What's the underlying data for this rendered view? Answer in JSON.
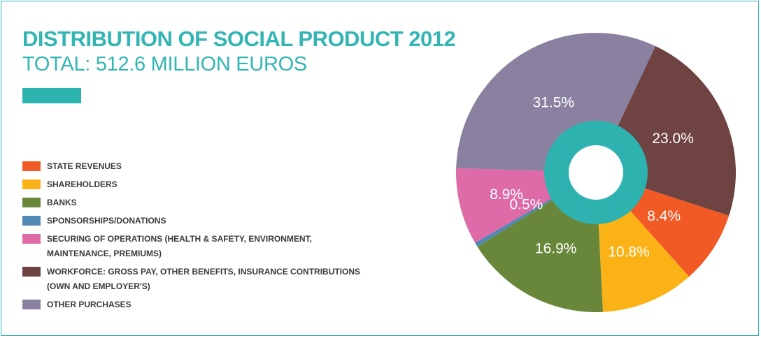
{
  "title": "DISTRIBUTION OF SOCIAL PRODUCT 2012",
  "subtitle": "TOTAL: 512.6 MILLION EUROS",
  "colors": {
    "accent": "#2bb3b0",
    "center_ring": "#2db2b0"
  },
  "legend": [
    {
      "label": "STATE REVENUES",
      "color": "#f15a24"
    },
    {
      "label": "SHAREHOLDERS",
      "color": "#fbb216"
    },
    {
      "label": "BANKS",
      "color": "#69873a"
    },
    {
      "label": "SPONSORSHIPS/DONATIONS",
      "color": "#5188b4"
    },
    {
      "label": "SECURING OF OPERATIONS (HEALTH & SAFETY, ENVIRONMENT, MAINTENANCE, PREMIUMS)",
      "color": "#de6aa8"
    },
    {
      "label": "WORKFORCE: GROSS PAY, OTHER BENEFITS, INSURANCE CONTRIBUTIONS (OWN AND EMPLOYER'S)",
      "color": "#6e4341"
    },
    {
      "label": "OTHER PURCHASES",
      "color": "#8a81a1"
    }
  ],
  "chart_data": {
    "type": "pie",
    "title": "DISTRIBUTION OF SOCIAL PRODUCT 2012",
    "subtitle": "TOTAL: 512.6 MILLION EUROS",
    "slices": [
      {
        "label": "STATE REVENUES",
        "value": 8.4,
        "display": "8.4%",
        "color": "#f15a24"
      },
      {
        "label": "SHAREHOLDERS",
        "value": 10.8,
        "display": "10.8%",
        "color": "#fbb216"
      },
      {
        "label": "BANKS",
        "value": 16.9,
        "display": "16.9%",
        "color": "#69873a"
      },
      {
        "label": "SPONSORSHIPS/DONATIONS",
        "value": 0.5,
        "display": "0.5%",
        "color": "#5188b4"
      },
      {
        "label": "SECURING OF OPERATIONS (HEALTH & SAFETY, ENVIRONMENT, MAINTENANCE, PREMIUMS)",
        "value": 8.9,
        "display": "8.9%",
        "color": "#de6aa8"
      },
      {
        "label": "OTHER PURCHASES",
        "value": 31.5,
        "display": "31.5%",
        "color": "#8a81a1"
      },
      {
        "label": "WORKFORCE: GROSS PAY, OTHER BENEFITS, INSURANCE CONTRIBUTIONS (OWN AND EMPLOYER'S)",
        "value": 23.0,
        "display": "23.0%",
        "color": "#6e4341"
      }
    ],
    "legend_position": "left"
  }
}
